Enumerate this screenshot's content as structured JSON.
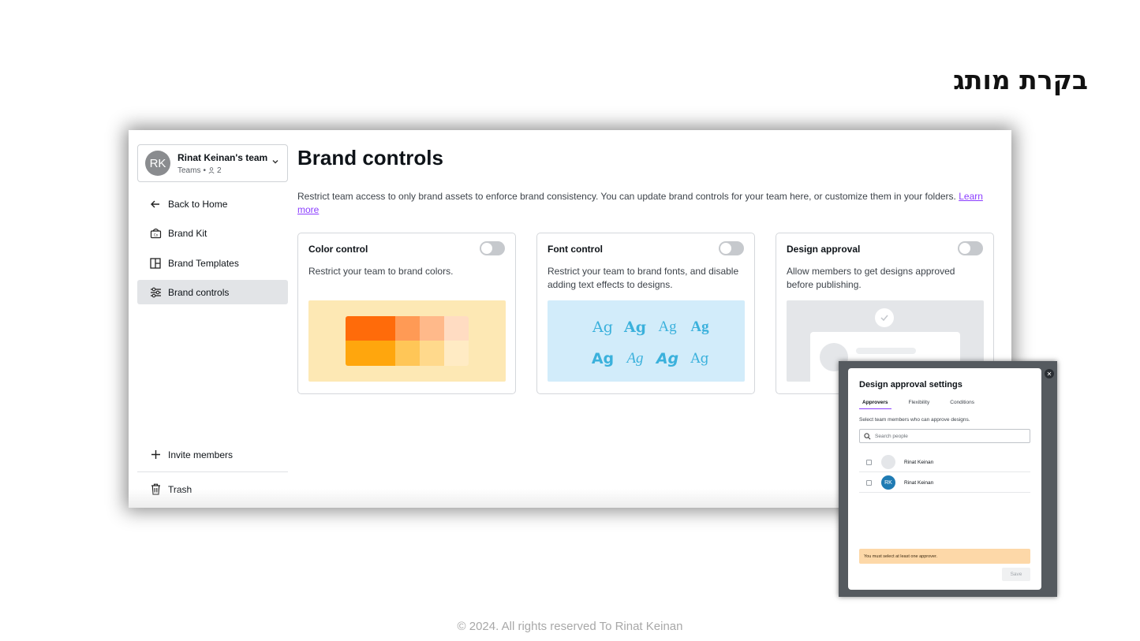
{
  "slide": {
    "title": "בקרת מותג",
    "footer": "© 2024. All rights reserved To Rinat Keinan"
  },
  "sidebar": {
    "team": {
      "avatar_initials": "RK",
      "name": "Rinat Keinan's team",
      "plan": "Teams",
      "member_count": "2",
      "avatar_color": "#8a8c8f"
    },
    "items": [
      {
        "label": "Back to Home",
        "icon": "arrow-left-icon"
      },
      {
        "label": "Brand Kit",
        "icon": "brand-kit-icon"
      },
      {
        "label": "Brand Templates",
        "icon": "template-layout-icon"
      },
      {
        "label": "Brand controls",
        "icon": "sliders-icon",
        "active": true
      }
    ],
    "bottom": [
      {
        "label": "Invite members",
        "icon": "plus-icon"
      },
      {
        "label": "Trash",
        "icon": "trash-icon"
      }
    ]
  },
  "main": {
    "title": "Brand controls",
    "description": "Restrict team access to only brand assets to enforce brand consistency. You can update brand controls for your team here, or customize them in your folders.",
    "learn_more": "Learn more",
    "cards": [
      {
        "title": "Color control",
        "description": "Restrict your team to brand colors.",
        "enabled": false
      },
      {
        "title": "Font control",
        "description": "Restrict your team to brand fonts, and disable adding text effects to designs.",
        "enabled": false
      },
      {
        "title": "Design approval",
        "description": "Allow members to get designs approved before publishing.",
        "enabled": false
      }
    ],
    "font_samples": [
      "Ag",
      "Ag",
      "Ag",
      "Ag",
      "Ag",
      "Ag",
      "Ag",
      "Ag"
    ]
  },
  "modal": {
    "title": "Design approval settings",
    "tabs": [
      "Approvers",
      "Flexibility",
      "Conditions"
    ],
    "active_tab": "Approvers",
    "hint": "Select team members who can approve designs.",
    "search_placeholder": "Search people",
    "people": [
      {
        "name": "Rinat Keinan",
        "initials": "",
        "avatar_color": "#e4e6e9",
        "checked": false
      },
      {
        "name": "Rinat Keinan",
        "initials": "RK",
        "avatar_color": "#1f7bb3",
        "checked": false
      }
    ],
    "warning": "You must select at least one approver.",
    "save_label": "Save",
    "close_icon": "close-icon"
  },
  "colors": {
    "accent": "#8b3dff",
    "color_card_bg": "#fde8b4",
    "font_card_bg": "#d2ecfa",
    "approval_card_bg": "#e4e6e9",
    "warning_bg": "#fdd8a8"
  }
}
